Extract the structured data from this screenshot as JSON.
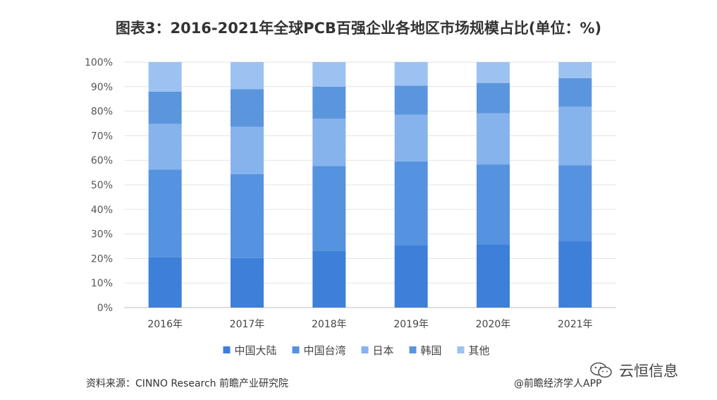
{
  "chart_data": {
    "type": "bar",
    "stacked": true,
    "title": "图表3：2016-2021年全球PCB百强企业各地区市场规模占比(单位：%)",
    "categories": [
      "2016年",
      "2017年",
      "2018年",
      "2019年",
      "2020年",
      "2021年"
    ],
    "series": [
      {
        "name": "中国大陆",
        "color": "#3d7fd9",
        "values": [
          20.5,
          20.2,
          23.1,
          25.5,
          25.7,
          27.0
        ]
      },
      {
        "name": "中国台湾",
        "color": "#5592e0",
        "values": [
          35.7,
          34.2,
          34.6,
          34.0,
          32.6,
          31.0
        ]
      },
      {
        "name": "日本",
        "color": "#86b3ec",
        "values": [
          18.6,
          19.3,
          19.2,
          19.1,
          20.8,
          23.8
        ]
      },
      {
        "name": "韩国",
        "color": "#5b95dd",
        "values": [
          13.2,
          15.3,
          13.1,
          11.8,
          12.4,
          11.6
        ]
      },
      {
        "name": "其他",
        "color": "#9cc2f2",
        "values": [
          12.0,
          11.0,
          10.0,
          9.6,
          8.5,
          6.6
        ]
      }
    ],
    "y_ticks": [
      "0%",
      "10%",
      "20%",
      "30%",
      "40%",
      "50%",
      "60%",
      "70%",
      "80%",
      "90%",
      "100%"
    ],
    "ylim": [
      0,
      100
    ],
    "legend_position": "bottom-center",
    "grid": true
  },
  "footer": {
    "source": "资料来源：CINNO Research 前瞻产业研究院",
    "credit": "@前瞻经济学人APP"
  },
  "brand": {
    "label": "云恒信息",
    "icon": "wechat-icon"
  }
}
